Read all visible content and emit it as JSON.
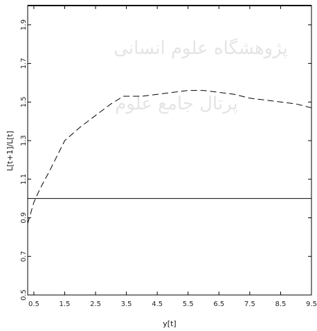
{
  "chart_data": {
    "type": "line",
    "xlabel": "y[t]",
    "ylabel": "L[t+1]/L[t]",
    "xlim": [
      0.3,
      9.5
    ],
    "ylim": [
      0.5,
      2.0
    ],
    "xticks": [
      "0.5",
      "1.5",
      "2.5",
      "3.5",
      "4.5",
      "5.5",
      "6.5",
      "7.5",
      "8.5",
      "9.5"
    ],
    "yticks": [
      "0.5",
      "0.7",
      "0.9",
      "1.1",
      "1.3",
      "1.5",
      "1.7",
      "1.9"
    ],
    "grid": false,
    "series": [
      {
        "style": "dashed",
        "x": [
          0.3,
          0.5,
          0.7,
          1.0,
          1.5,
          2.0,
          2.5,
          3.0,
          3.4,
          4.0,
          4.5,
          5.0,
          5.5,
          6.0,
          6.5,
          7.0,
          7.5,
          8.0,
          8.5,
          9.0,
          9.5
        ],
        "y": [
          0.87,
          0.98,
          1.05,
          1.14,
          1.3,
          1.37,
          1.43,
          1.49,
          1.53,
          1.53,
          1.54,
          1.55,
          1.56,
          1.56,
          1.55,
          1.54,
          1.52,
          1.51,
          1.5,
          1.49,
          1.47
        ]
      }
    ],
    "reference_line": {
      "y": 1.0,
      "style": "solid"
    },
    "watermark": [
      "پژوهشگاه علوم انسانی",
      "پرتال جامع علوم"
    ]
  }
}
